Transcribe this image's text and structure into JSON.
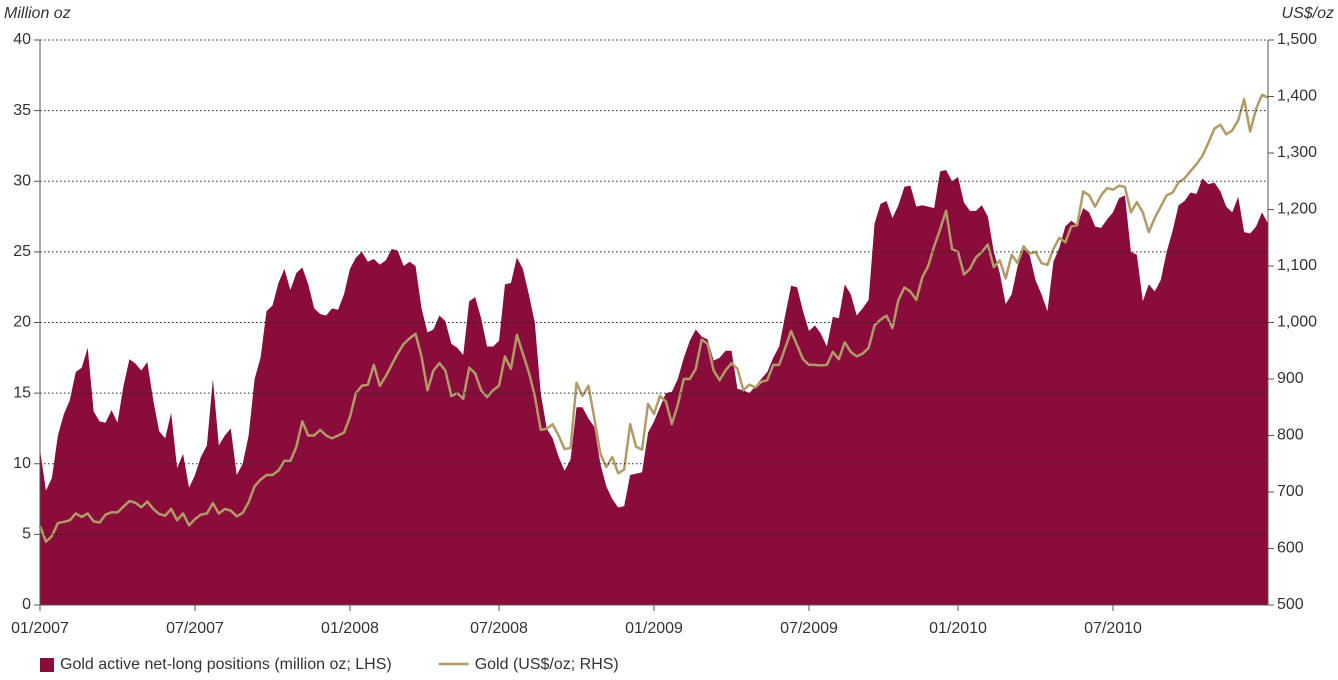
{
  "chart_data": {
    "type": "area",
    "y_label": "Million oz",
    "y2_label": "US$/oz",
    "categories": [
      "01/2007",
      null,
      null,
      null,
      null,
      null,
      null,
      null,
      null,
      null,
      null,
      null,
      null,
      null,
      null,
      null,
      null,
      null,
      null,
      null,
      null,
      null,
      null,
      null,
      null,
      null,
      "07/2007",
      null,
      null,
      null,
      null,
      null,
      null,
      null,
      null,
      null,
      null,
      null,
      null,
      null,
      null,
      null,
      null,
      null,
      null,
      null,
      null,
      null,
      null,
      null,
      null,
      null,
      "01/2008",
      null,
      null,
      null,
      null,
      null,
      null,
      null,
      null,
      null,
      null,
      null,
      null,
      null,
      null,
      null,
      null,
      null,
      null,
      null,
      null,
      null,
      null,
      null,
      null,
      "07/2008",
      null,
      null,
      null,
      null,
      null,
      null,
      null,
      null,
      null,
      null,
      null,
      null,
      null,
      null,
      null,
      null,
      null,
      null,
      null,
      null,
      null,
      null,
      null,
      null,
      null,
      "01/2009",
      null,
      null,
      null,
      null,
      null,
      null,
      null,
      null,
      null,
      null,
      null,
      null,
      null,
      null,
      null,
      null,
      null,
      null,
      null,
      null,
      null,
      null,
      null,
      null,
      null,
      "07/2009",
      null,
      null,
      null,
      null,
      null,
      null,
      null,
      null,
      null,
      null,
      null,
      null,
      null,
      null,
      null,
      null,
      null,
      null,
      null,
      null,
      null,
      null,
      null,
      null,
      "01/2010",
      null,
      null,
      null,
      null,
      null,
      null,
      null,
      null,
      null,
      null,
      null,
      null,
      null,
      null,
      null,
      null,
      null,
      null,
      null,
      null,
      null,
      null,
      null,
      null,
      null,
      "07/2010",
      null,
      null,
      null,
      null,
      null,
      null,
      null,
      null,
      null,
      null,
      null,
      null,
      null,
      null,
      null,
      null,
      null,
      null,
      null,
      null,
      null,
      null,
      null,
      null,
      null,
      null
    ],
    "series": [
      {
        "name": "Gold active net-long positions (million oz; LHS)",
        "type": "area",
        "color": "#8a0c3a",
        "values": [
          11,
          8.1,
          9,
          12,
          13.5,
          14.5,
          16.5,
          16.8,
          18.2,
          13.7,
          13,
          12.9,
          13.8,
          12.9,
          15.5,
          17.4,
          17.1,
          16.6,
          17.2,
          14.5,
          12.3,
          11.8,
          13.6,
          9.7,
          10.7,
          8.3,
          9.2,
          10.5,
          11.3,
          16,
          11.3,
          12,
          12.5,
          9.2,
          10,
          12,
          16,
          17.5,
          20.8,
          21.2,
          22.8,
          23.8,
          22.3,
          23.5,
          23.9,
          22.7,
          21,
          20.6,
          20.5,
          21,
          20.9,
          22,
          23.8,
          24.6,
          25,
          24.3,
          24.5,
          24.1,
          24.4,
          25.2,
          25.1,
          24,
          24.3,
          24,
          21,
          19.3,
          19.5,
          20.5,
          20.1,
          18.5,
          18.2,
          17.7,
          21.5,
          21.8,
          20.3,
          18.3,
          18.3,
          18.7,
          22.7,
          22.8,
          24.6,
          23.8,
          22,
          20,
          15,
          12.5,
          11.8,
          10.5,
          9.5,
          10.3,
          14,
          14,
          13.2,
          12.6,
          10,
          8.4,
          7.5,
          6.9,
          7,
          9.2,
          9.3,
          9.4,
          12.2,
          13,
          14,
          15,
          15.1,
          16,
          17.5,
          18.7,
          19.5,
          19,
          18.8,
          17.3,
          17.5,
          18,
          18,
          15.3,
          15.2,
          15,
          15.5,
          16,
          16.5,
          17.5,
          18.3,
          20.5,
          22.6,
          22.5,
          20.8,
          19.4,
          19.8,
          19.2,
          18.3,
          20.4,
          20.3,
          22.7,
          22,
          20.5,
          21,
          21.6,
          27,
          28.4,
          28.6,
          27.4,
          28.3,
          29.6,
          29.7,
          28.2,
          28.3,
          28.2,
          28.1,
          30.7,
          30.8,
          30,
          30.3,
          28.5,
          27.9,
          27.9,
          28.3,
          27.5,
          25,
          23.5,
          21.3,
          22,
          24,
          25.2,
          24.8,
          23,
          22,
          20.8,
          24.3,
          25.3,
          26.8,
          27.2,
          26.9,
          28.1,
          27.8,
          26.8,
          26.7,
          27.3,
          27.8,
          28.8,
          29,
          25,
          24.8,
          21.5,
          22.7,
          22.2,
          23,
          25,
          26.5,
          28.3,
          28.6,
          29.2,
          29.1,
          30.2,
          29.8,
          29.9,
          29.3,
          28.2,
          27.8,
          28.9,
          26.4,
          26.3,
          26.8,
          27.8,
          27
        ]
      },
      {
        "name": "Gold (US$/oz; RHS)",
        "type": "line",
        "axis": "y2",
        "color": "#b09a68",
        "values": [
          640,
          612,
          622,
          645,
          647,
          650,
          662,
          656,
          662,
          648,
          646,
          660,
          664,
          664,
          674,
          684,
          681,
          673,
          683,
          670,
          661,
          658,
          670,
          650,
          662,
          641,
          652,
          660,
          662,
          680,
          662,
          670,
          667,
          657,
          663,
          682,
          710,
          722,
          730,
          730,
          738,
          755,
          755,
          780,
          825,
          800,
          800,
          810,
          800,
          795,
          800,
          805,
          833,
          875,
          888,
          890,
          925,
          888,
          905,
          925,
          945,
          962,
          972,
          980,
          940,
          880,
          915,
          928,
          915,
          870,
          875,
          865,
          920,
          910,
          880,
          868,
          880,
          888,
          940,
          918,
          978,
          945,
          912,
          870,
          810,
          812,
          820,
          800,
          776,
          778,
          893,
          870,
          888,
          830,
          768,
          744,
          762,
          733,
          740,
          820,
          780,
          775,
          856,
          838,
          870,
          860,
          820,
          855,
          900,
          900,
          918,
          970,
          962,
          915,
          898,
          915,
          928,
          918,
          880,
          890,
          885,
          895,
          898,
          925,
          925,
          955,
          985,
          960,
          935,
          925,
          925,
          924,
          925,
          948,
          935,
          965,
          948,
          940,
          945,
          955,
          995,
          1005,
          1012,
          990,
          1040,
          1062,
          1055,
          1040,
          1080,
          1100,
          1135,
          1165,
          1198,
          1130,
          1125,
          1085,
          1095,
          1115,
          1125,
          1138,
          1098,
          1110,
          1078,
          1120,
          1105,
          1135,
          1122,
          1125,
          1105,
          1102,
          1130,
          1150,
          1142,
          1170,
          1172,
          1232,
          1225,
          1205,
          1225,
          1238,
          1235,
          1242,
          1240,
          1195,
          1213,
          1195,
          1160,
          1185,
          1205,
          1225,
          1230,
          1248,
          1255,
          1268,
          1280,
          1295,
          1318,
          1343,
          1350,
          1333,
          1340,
          1358,
          1395,
          1338,
          1378,
          1403,
          1398
        ]
      }
    ],
    "ylim": [
      0,
      40
    ],
    "yticks": [
      0,
      5,
      10,
      15,
      20,
      25,
      30,
      35,
      40
    ],
    "y2lim": [
      500,
      1500
    ],
    "y2ticks": [
      500,
      600,
      700,
      800,
      900,
      {
        "value": 1000,
        "label": "1,000"
      },
      {
        "value": 1100,
        "label": "1,100"
      },
      {
        "value": 1200,
        "label": "1,200"
      },
      {
        "value": 1300,
        "label": "1,300"
      },
      {
        "value": 1400,
        "label": "1,400"
      },
      {
        "value": 1500,
        "label": "1,500"
      }
    ],
    "grid": true
  }
}
